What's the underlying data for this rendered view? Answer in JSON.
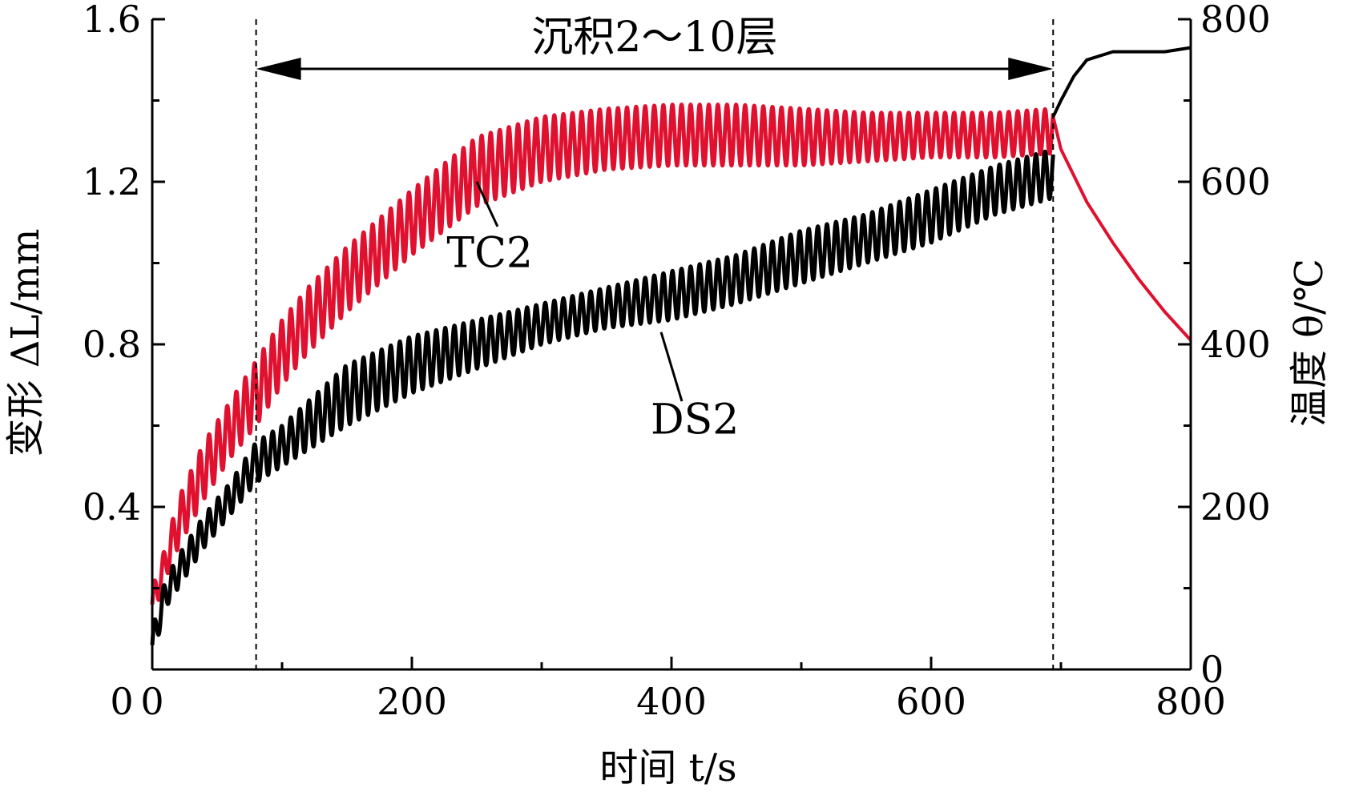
{
  "chart_data": {
    "type": "line",
    "title": "",
    "xlabel": "时间 t/s",
    "ylabel_left": "变形 ΔL/mm",
    "ylabel_right": "温度 θ/℃",
    "xlim": [
      0,
      800
    ],
    "ylim_left": [
      0,
      1.6
    ],
    "ylim_right": [
      0,
      800
    ],
    "x_ticks": [
      "0",
      "200",
      "400",
      "600",
      "800"
    ],
    "y_left_ticks": [
      "0.4",
      "0.8",
      "1.2",
      "1.6"
    ],
    "y_right_ticks": [
      "0",
      "200",
      "400",
      "600",
      "800"
    ],
    "grid": false,
    "annotation": {
      "text": "沉积2～10层",
      "x_start": 80,
      "x_end": 694
    },
    "series": [
      {
        "name": "TC2",
        "color": "#e0102f",
        "axis": "left",
        "envelope": {
          "x": [
            0,
            10,
            20,
            40,
            60,
            80,
            100,
            120,
            150,
            200,
            250,
            300,
            350,
            400,
            450,
            500,
            550,
            600,
            650,
            694
          ],
          "low": [
            0.12,
            0.22,
            0.3,
            0.42,
            0.52,
            0.6,
            0.7,
            0.78,
            0.88,
            1.02,
            1.14,
            1.2,
            1.23,
            1.24,
            1.24,
            1.24,
            1.25,
            1.26,
            1.26,
            1.27
          ],
          "high": [
            0.2,
            0.3,
            0.42,
            0.56,
            0.66,
            0.76,
            0.86,
            0.94,
            1.04,
            1.18,
            1.31,
            1.36,
            1.38,
            1.39,
            1.39,
            1.38,
            1.37,
            1.37,
            1.37,
            1.38
          ]
        },
        "period_s": 7,
        "post_deposition": {
          "x": [
            694,
            700,
            720,
            740,
            760,
            780,
            800
          ],
          "y": [
            1.36,
            1.28,
            1.15,
            1.05,
            0.96,
            0.88,
            0.81
          ]
        }
      },
      {
        "name": "DS2",
        "color": "#000000",
        "axis": "left",
        "envelope": {
          "x": [
            0,
            10,
            20,
            40,
            60,
            80,
            100,
            120,
            150,
            200,
            250,
            300,
            350,
            400,
            450,
            500,
            550,
            600,
            650,
            694
          ],
          "low": [
            0.02,
            0.15,
            0.2,
            0.3,
            0.38,
            0.46,
            0.5,
            0.54,
            0.6,
            0.68,
            0.74,
            0.8,
            0.84,
            0.86,
            0.9,
            0.95,
            1.0,
            1.05,
            1.12,
            1.16
          ],
          "high": [
            0.1,
            0.22,
            0.28,
            0.38,
            0.46,
            0.56,
            0.6,
            0.66,
            0.75,
            0.82,
            0.86,
            0.9,
            0.94,
            0.98,
            1.02,
            1.08,
            1.12,
            1.18,
            1.24,
            1.28
          ]
        },
        "period_s": 7,
        "post_deposition": {
          "x": [
            694,
            700,
            710,
            720,
            740,
            760,
            780,
            800
          ],
          "y": [
            1.36,
            1.4,
            1.46,
            1.5,
            1.52,
            1.52,
            1.52,
            1.53
          ]
        }
      }
    ]
  }
}
